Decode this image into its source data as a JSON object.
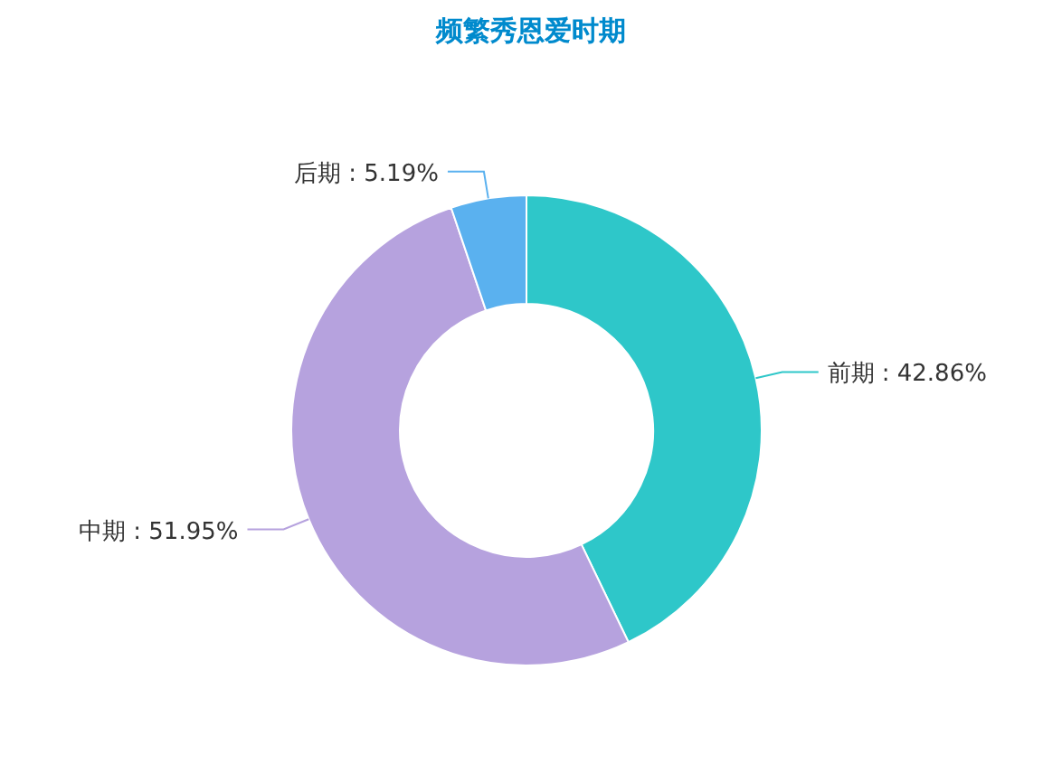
{
  "chart_data": {
    "type": "donut",
    "title": "频繁秀恩爱时期",
    "categories": [
      "前期",
      "中期",
      "后期"
    ],
    "values": [
      42.86,
      51.95,
      5.19
    ],
    "colors": [
      "#2ec7c9",
      "#b6a2de",
      "#5ab1ef"
    ],
    "value_labels": [
      ": 42.86%",
      ": 51.95%",
      ": 5.19%"
    ]
  }
}
